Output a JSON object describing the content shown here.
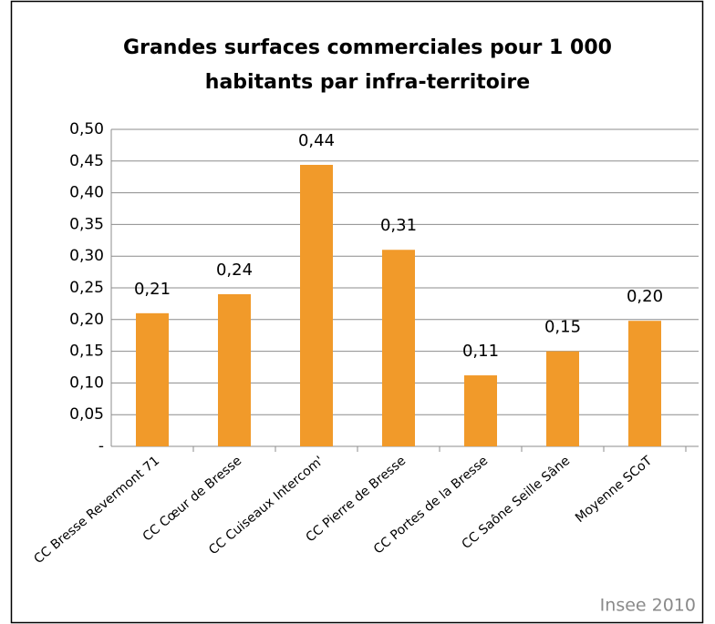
{
  "chart_data": {
    "type": "bar",
    "title": "Grandes surfaces commerciales pour 1 000 habitants par infra-territoire",
    "categories": [
      "CC Bresse Revermont 71",
      "CC Cœur de Bresse",
      "CC Cuiseaux Intercom'",
      "CC Pierre de Bresse",
      "CC Portes de la Bresse",
      "CC Saône Seille Sâne",
      "Moyenne SCoT"
    ],
    "values": [
      0.21,
      0.24,
      0.444,
      0.31,
      0.112,
      0.15,
      0.198
    ],
    "value_labels": [
      "0,21",
      "0,24",
      "0,44",
      "0,31",
      "0,11",
      "0,15",
      "0,20"
    ],
    "color": "#f19a2a",
    "ylim": [
      0,
      0.5
    ],
    "yticks": [
      {
        "value": 0,
        "label": "-"
      },
      {
        "value": 0.05,
        "label": "0,05"
      },
      {
        "value": 0.1,
        "label": "0,10"
      },
      {
        "value": 0.15,
        "label": "0,15"
      },
      {
        "value": 0.2,
        "label": "0,20"
      },
      {
        "value": 0.25,
        "label": "0,25"
      },
      {
        "value": 0.3,
        "label": "0,30"
      },
      {
        "value": 0.35,
        "label": "0,35"
      },
      {
        "value": 0.4,
        "label": "0,40"
      },
      {
        "value": 0.45,
        "label": "0,45"
      },
      {
        "value": 0.5,
        "label": "0,50"
      }
    ],
    "grid": true,
    "annotation": "Insee 2010"
  }
}
